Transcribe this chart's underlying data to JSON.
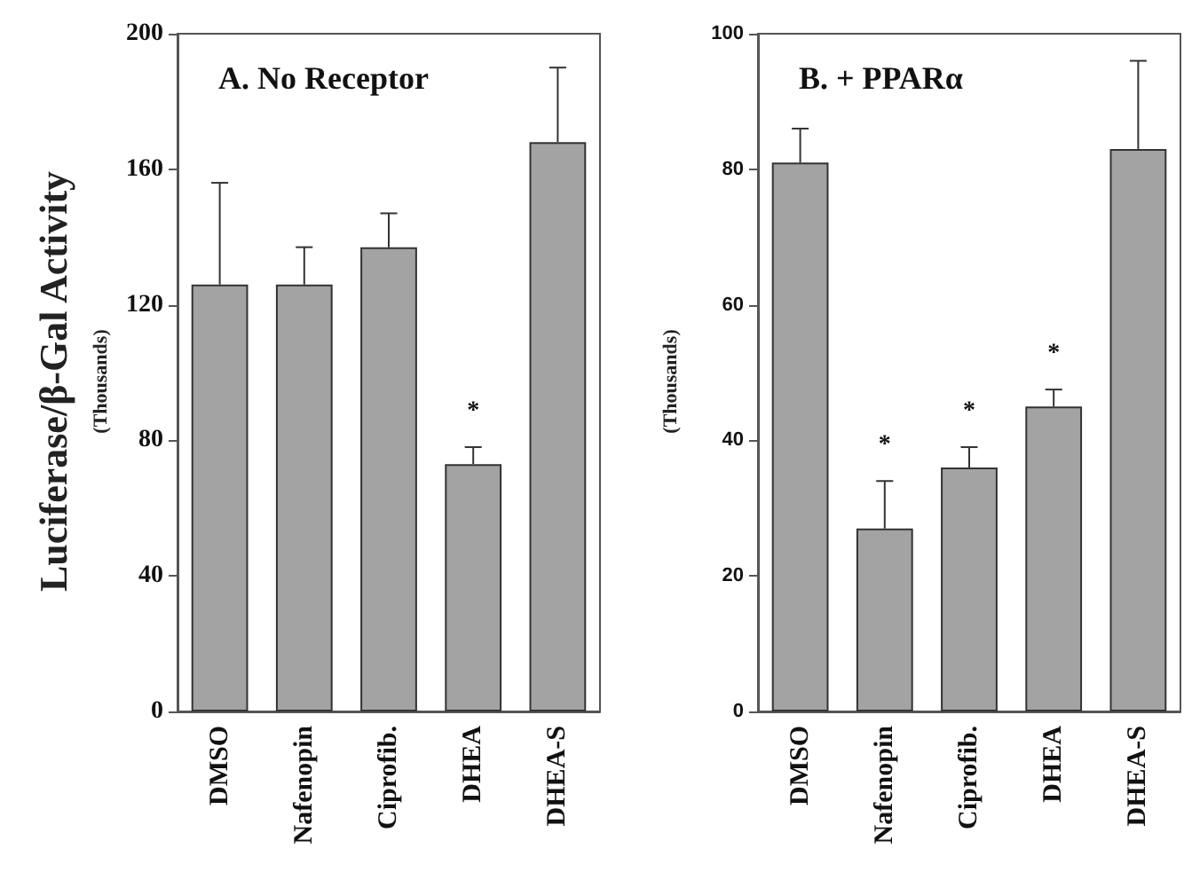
{
  "chart_data": [
    {
      "type": "bar",
      "title": "A. No Receptor",
      "ylabel": "Luciferase/β-Gal Activity",
      "categories": [
        "DMSO",
        "Nafenopin",
        "Ciprofib.",
        "DHEA",
        "DHEA-S"
      ],
      "color": "#a3a3a3",
      "values": [
        126,
        126,
        137,
        73,
        168
      ],
      "errors": [
        [
          126,
          156
        ],
        [
          126,
          137
        ],
        [
          137,
          147
        ],
        [
          73,
          78
        ],
        [
          168,
          190
        ]
      ],
      "ylim": [
        0,
        200
      ],
      "yticks": [
        0,
        40,
        80,
        120,
        160,
        200
      ],
      "grid": false,
      "annotations": [
        "(Thousands)",
        {
          "text": "*",
          "x": "DHEA",
          "y": 78
        }
      ]
    },
    {
      "type": "bar",
      "title": "B. + PPARα",
      "ylabel": "(Thousands)",
      "categories": [
        "DMSO",
        "Nafenopin",
        "Ciprofib.",
        "DHEA",
        "DHEA-S"
      ],
      "color": "#a3a3a3",
      "values": [
        81,
        27,
        36,
        45,
        83
      ],
      "errors": [
        [
          81,
          86
        ],
        [
          27,
          34
        ],
        [
          36,
          39
        ],
        [
          45,
          47.5
        ],
        [
          83,
          96
        ]
      ],
      "ylim": [
        0,
        100
      ],
      "yticks": [
        0,
        20,
        40,
        60,
        80,
        100
      ],
      "grid": false,
      "annotations": [
        {
          "text": "*",
          "x": "Nafenopin",
          "y": 34
        },
        {
          "text": "*",
          "x": "Ciprofib.",
          "y": 39
        },
        {
          "text": "*",
          "x": "DHEA",
          "y": 47.5
        }
      ]
    }
  ]
}
